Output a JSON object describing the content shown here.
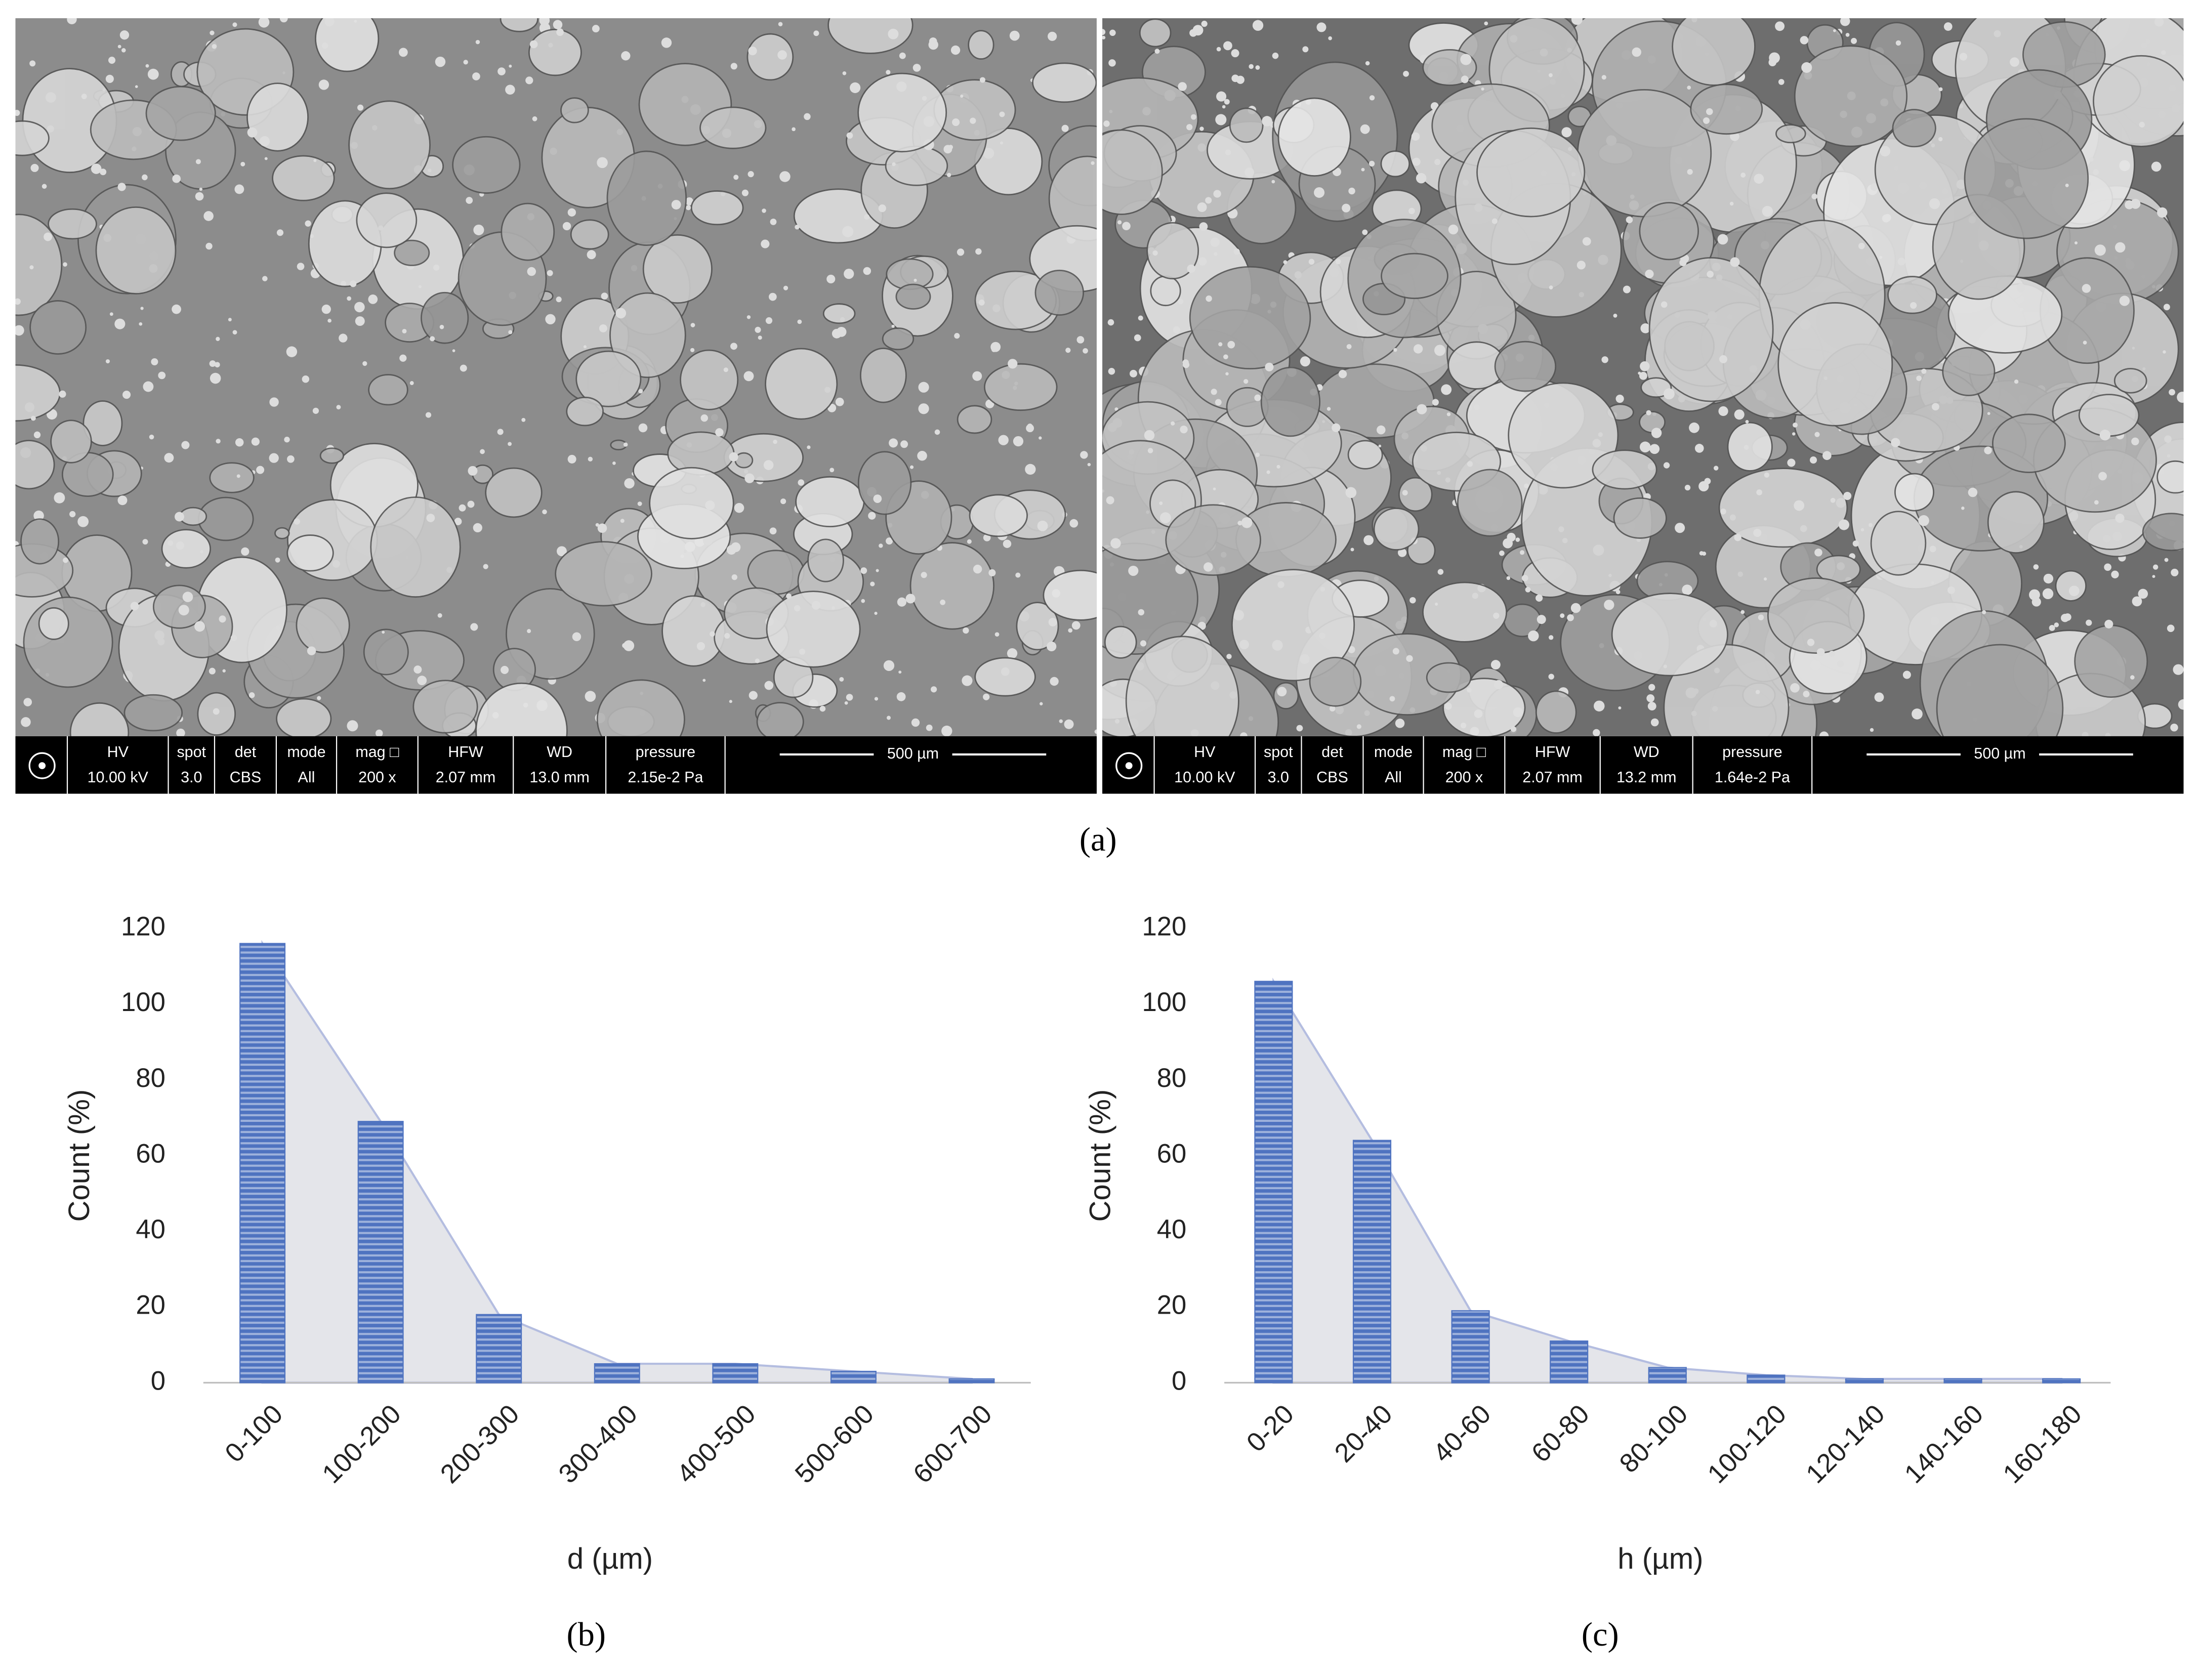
{
  "sem_images": [
    {
      "info": [
        {
          "label": "HV",
          "value": "10.00 kV"
        },
        {
          "label": "spot",
          "value": "3.0"
        },
        {
          "label": "det",
          "value": "CBS"
        },
        {
          "label": "mode",
          "value": "All"
        },
        {
          "label": "mag □",
          "value": "200 x"
        },
        {
          "label": "HFW",
          "value": "2.07 mm"
        },
        {
          "label": "WD",
          "value": "13.0 mm"
        },
        {
          "label": "pressure",
          "value": "2.15e-2 Pa"
        }
      ],
      "scale_bar": "500 µm"
    },
    {
      "info": [
        {
          "label": "HV",
          "value": "10.00 kV"
        },
        {
          "label": "spot",
          "value": "3.0"
        },
        {
          "label": "det",
          "value": "CBS"
        },
        {
          "label": "mode",
          "value": "All"
        },
        {
          "label": "mag □",
          "value": "200 x"
        },
        {
          "label": "HFW",
          "value": "2.07 mm"
        },
        {
          "label": "WD",
          "value": "13.2 mm"
        },
        {
          "label": "pressure",
          "value": "1.64e-2 Pa"
        }
      ],
      "scale_bar": "500 µm"
    }
  ],
  "panel_labels": [
    "(a)",
    "(b)",
    "(c)"
  ],
  "chart_data": [
    {
      "type": "bar",
      "x_label": "d (µm)",
      "y_label": "Count (%)",
      "categories": [
        "0-100",
        "100-200",
        "200-300",
        "300-400",
        "400-500",
        "500-600",
        "600-700"
      ],
      "values": [
        116,
        69,
        18,
        5,
        5,
        3,
        1
      ],
      "color": "#4f73c0",
      "area_color": "#e4e5ea",
      "area_line_color": "#b4bde0",
      "ylim": [
        0,
        120
      ],
      "yticks": [
        0,
        20,
        40,
        60,
        80,
        100,
        120
      ],
      "grid": false
    },
    {
      "type": "bar",
      "x_label": "h (µm)",
      "y_label": "Count (%)",
      "categories": [
        "0-20",
        "20-40",
        "40-60",
        "60-80",
        "80-100",
        "100-120",
        "120-140",
        "140-160",
        "160-180"
      ],
      "values": [
        106,
        64,
        19,
        11,
        4,
        2,
        1,
        1,
        1
      ],
      "color": "#4f73c0",
      "area_color": "#e4e5ea",
      "area_line_color": "#b4bde0",
      "ylim": [
        0,
        120
      ],
      "yticks": [
        0,
        20,
        40,
        60,
        80,
        100,
        120
      ],
      "grid": false
    }
  ]
}
